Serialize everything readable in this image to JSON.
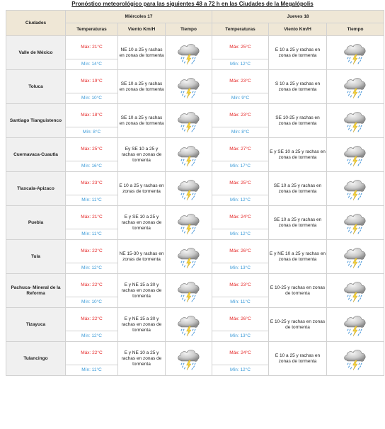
{
  "title": "Pronóstico meteorológico para las siguientes 48 a 72 h en las Ciudades de la Megalópolis",
  "headers": {
    "cities": "Ciudades",
    "day1": "Miércoles 17",
    "day2": "Jueves 18",
    "temperatures": "Temperaturas",
    "wind": "Viento Km/H",
    "weather": "Tiempo"
  },
  "weather_icon": "storm-cloud-icon",
  "rows": [
    {
      "city": "Valle de México",
      "d1": {
        "max": "Máx: 21°C",
        "min": "Mín: 14°C",
        "wind": "NE 10 a 25 y rachas en zonas de tormenta"
      },
      "d2": {
        "max": "Máx: 25°C",
        "min": "Mín: 12°C",
        "wind": "E 10 a 25 y rachas en zonas de tormenta"
      }
    },
    {
      "city": "Toluca",
      "d1": {
        "max": "Máx: 19°C",
        "min": "Mín: 10°C",
        "wind": "SE 10 a 25 y rachas en zonas de tormenta"
      },
      "d2": {
        "max": "Máx: 23°C",
        "min": "Mín: 9°C",
        "wind": "S 10 a 25 y rachas en zonas de tormenta"
      }
    },
    {
      "city": "Santiago Tianguistenco",
      "d1": {
        "max": "Máx: 18°C",
        "min": "Mín: 8°C",
        "wind": "SE 10 a 25 y rachas en zonas de tormenta"
      },
      "d2": {
        "max": "Máx: 23°C",
        "min": "Mín: 8°C",
        "wind": "SE 10-25 y rachas en zonas de tormenta"
      }
    },
    {
      "city": "Cuernavaca-Cuautla",
      "d1": {
        "max": "Máx: 25°C",
        "min": "Mín: 16°C",
        "wind": "Ey SE 10 a 25 y rachas en zonas de tormenta"
      },
      "d2": {
        "max": "Máx: 27°C",
        "min": "Mín: 17°C",
        "wind": "E y SE 10 a 25 y rachas en zonas de tormenta"
      }
    },
    {
      "city": "Tlaxcala-Apizaco",
      "d1": {
        "max": "Máx: 23°C",
        "min": "Mín: 11°C",
        "wind": "E 10 a 25 y rachas en zonas de tormenta"
      },
      "d2": {
        "max": "Máx: 25°C",
        "min": "Mín: 12°C",
        "wind": "SE 10 a 25 y rachas en zonas de tormenta"
      }
    },
    {
      "city": "Puebla",
      "d1": {
        "max": "Máx: 21°C",
        "min": "Mín: 11°C",
        "wind": "E y SE 10 a 25 y rachas en zonas de tormenta"
      },
      "d2": {
        "max": "Máx: 24°C",
        "min": "Mín: 12°C",
        "wind": "SE 10 a 25 y rachas en zonas de tormenta"
      }
    },
    {
      "city": "Tula",
      "d1": {
        "max": "Máx: 22°C",
        "min": "Mín: 12°C",
        "wind": "NE 15-30 y rachas en zonas de tormenta"
      },
      "d2": {
        "max": "Máx: 26°C",
        "min": "Mín: 13°C",
        "wind": "E y NE 10 a 25 y rachas en zonas de tormenta"
      }
    },
    {
      "city": "Pachuca- Mineral de la Reforma",
      "d1": {
        "max": "Máx: 22°C",
        "min": "Mín: 10°C",
        "wind": "E y NE 15 a 30 y rachas en zonas de tormenta"
      },
      "d2": {
        "max": "Máx: 23°C",
        "min": "Mín: 11°C",
        "wind": "E 10-25 y rachas en zonas de tormenta"
      }
    },
    {
      "city": "Tizayuca",
      "d1": {
        "max": "Máx: 22°C",
        "min": "Mín: 12°C",
        "wind": "E y NE 15 a 30 y rachas en zonas de tormenta"
      },
      "d2": {
        "max": "Máx: 26°C",
        "min": "Mín: 13°C",
        "wind": "E 10-25 y rachas en zonas de tormenta"
      }
    },
    {
      "city": "Tulancingo",
      "d1": {
        "max": "Máx: 22°C",
        "min": "Mín: 11°C",
        "wind": "E y NE 10 a 25 y rachas en zonas de tormenta"
      },
      "d2": {
        "max": "Máx: 24°C",
        "min": "Mín: 12°C",
        "wind": "E 10 a 25 y rachas en zonas de tormenta"
      }
    }
  ]
}
